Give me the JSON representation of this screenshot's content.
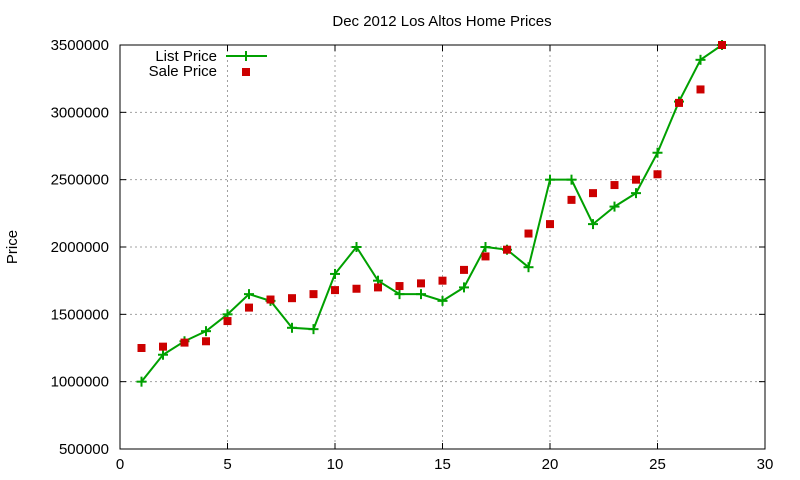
{
  "chart_data": {
    "type": "line",
    "title": "Dec 2012 Los Altos Home Prices",
    "xlabel": "",
    "ylabel": "Price",
    "xlim": [
      0,
      30
    ],
    "ylim": [
      500000,
      3500000
    ],
    "xticks": [
      0,
      5,
      10,
      15,
      20,
      25,
      30
    ],
    "yticks": [
      500000,
      1000000,
      1500000,
      2000000,
      2500000,
      3000000,
      3500000
    ],
    "grid": true,
    "legend_position": "top-left",
    "series": [
      {
        "name": "List Price",
        "style": "line-with-plus-markers",
        "color": "#00a000",
        "x": [
          1,
          2,
          3,
          4,
          5,
          6,
          7,
          8,
          9,
          10,
          11,
          12,
          13,
          14,
          15,
          16,
          17,
          18,
          19,
          20,
          21,
          22,
          23,
          24,
          25,
          26,
          27,
          28
        ],
        "values": [
          1000000,
          1200000,
          1300000,
          1375000,
          1500000,
          1650000,
          1600000,
          1400000,
          1390000,
          1800000,
          2000000,
          1750000,
          1650000,
          1650000,
          1600000,
          1700000,
          2000000,
          1980000,
          1850000,
          2500000,
          2500000,
          2170000,
          2300000,
          2400000,
          2700000,
          3080000,
          3390000,
          3500000
        ]
      },
      {
        "name": "Sale Price",
        "style": "square-markers",
        "color": "#cc0000",
        "x": [
          1,
          2,
          3,
          4,
          5,
          6,
          7,
          8,
          9,
          10,
          11,
          12,
          13,
          14,
          15,
          16,
          17,
          18,
          19,
          20,
          21,
          22,
          23,
          24,
          25,
          26,
          27,
          28
        ],
        "values": [
          1250000,
          1260000,
          1290000,
          1300000,
          1450000,
          1550000,
          1610000,
          1620000,
          1650000,
          1680000,
          1690000,
          1700000,
          1710000,
          1730000,
          1750000,
          1830000,
          1930000,
          1980000,
          2100000,
          2170000,
          2350000,
          2400000,
          2460000,
          2500000,
          2540000,
          3070000,
          3170000,
          3500000
        ]
      }
    ]
  }
}
